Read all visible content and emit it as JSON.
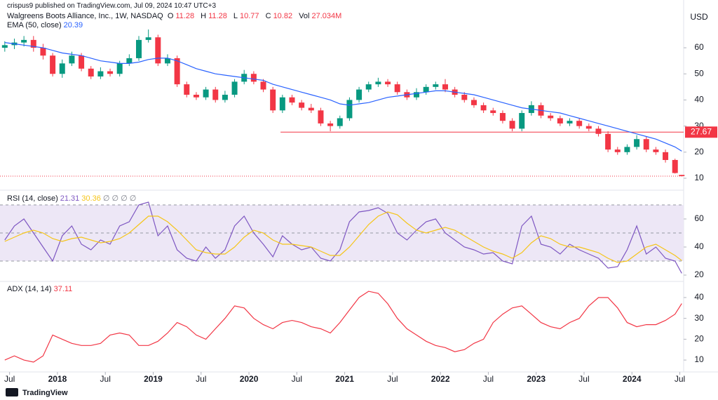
{
  "header": {
    "published": "crispus9 published on TradingView.com, Jul 09, 2024 10:47 UTC+3"
  },
  "footer": {
    "brand": "TradingView"
  },
  "chart_data": [
    {
      "type": "candlestick",
      "title": "Walgreens Boots Alliance, Inc., 1W, NASDAQ",
      "ohlc_labels": [
        "O",
        "H",
        "L",
        "C",
        "Vol"
      ],
      "volume_label": "27.034M",
      "y_axis_label": "USD",
      "up_color": "#089981",
      "down_color": "#f23645",
      "x": [
        2017.45,
        2017.55,
        2017.65,
        2017.75,
        2017.85,
        2017.95,
        2018.05,
        2018.15,
        2018.25,
        2018.35,
        2018.45,
        2018.55,
        2018.65,
        2018.75,
        2018.85,
        2018.95,
        2019.05,
        2019.15,
        2019.25,
        2019.35,
        2019.45,
        2019.55,
        2019.65,
        2019.75,
        2019.85,
        2019.95,
        2020.05,
        2020.15,
        2020.25,
        2020.35,
        2020.45,
        2020.55,
        2020.65,
        2020.75,
        2020.85,
        2020.95,
        2021.05,
        2021.15,
        2021.25,
        2021.35,
        2021.45,
        2021.55,
        2021.65,
        2021.75,
        2021.85,
        2021.95,
        2022.05,
        2022.15,
        2022.25,
        2022.35,
        2022.45,
        2022.55,
        2022.65,
        2022.75,
        2022.85,
        2022.95,
        2023.05,
        2023.15,
        2023.25,
        2023.35,
        2023.45,
        2023.55,
        2023.65,
        2023.75,
        2023.85,
        2023.95,
        2024.05,
        2024.15,
        2024.25,
        2024.35,
        2024.45,
        2024.52
      ],
      "open": [
        60,
        61,
        62,
        63,
        60,
        57,
        50,
        54,
        57,
        52,
        49,
        51,
        50,
        54,
        56,
        63,
        64,
        54,
        56,
        46,
        42,
        41,
        44,
        40,
        42,
        47,
        50,
        47,
        44,
        36,
        41,
        39,
        37,
        36,
        31,
        30,
        33,
        40,
        44,
        46,
        47,
        46,
        43,
        41,
        43,
        45,
        46,
        44,
        42,
        40,
        38,
        36,
        35,
        32,
        29,
        35,
        38,
        34,
        33,
        31,
        32,
        30,
        29,
        27,
        21,
        20,
        22,
        25,
        21,
        20,
        17,
        11.28
      ],
      "high": [
        62.5,
        63.5,
        64.5,
        64.5,
        61.5,
        58,
        55.5,
        58.5,
        58,
        53,
        52.5,
        52,
        55,
        57.5,
        64.5,
        67,
        65,
        57.5,
        57,
        47,
        43,
        45,
        45,
        43.5,
        48,
        51.5,
        51,
        48,
        45,
        42,
        42,
        40,
        38.5,
        37,
        32,
        34,
        41,
        45,
        47,
        48.5,
        48,
        47,
        44,
        44.5,
        46,
        47,
        48,
        45,
        43,
        41,
        39,
        37,
        36,
        33,
        36,
        39.5,
        39,
        35,
        34,
        33,
        33,
        31,
        30,
        28,
        22,
        23,
        26.5,
        26,
        22,
        21,
        17.5,
        11.28
      ],
      "low": [
        58.5,
        59.5,
        60.5,
        58.5,
        55.5,
        49,
        48.5,
        53,
        51,
        48,
        48,
        49,
        49,
        53,
        55,
        62,
        53,
        53,
        45,
        41,
        40,
        40,
        39,
        39,
        41,
        46,
        46,
        43,
        35,
        35,
        38,
        36,
        35,
        30,
        28,
        29,
        32,
        39,
        43,
        45,
        45,
        42,
        40,
        40,
        42,
        44,
        43,
        41,
        39,
        37,
        35,
        34,
        31,
        28,
        28,
        34,
        33,
        32,
        30,
        30,
        29,
        28,
        26,
        20,
        19,
        19,
        21,
        20,
        19,
        16,
        11.8,
        10.77
      ],
      "close": [
        61,
        62,
        63,
        60,
        57,
        50,
        54,
        57,
        52,
        49,
        51,
        50,
        54,
        56,
        63,
        64,
        54,
        56,
        46,
        42,
        41,
        44,
        40,
        42,
        47,
        50,
        47,
        44,
        36,
        41,
        39,
        37,
        36,
        31,
        30,
        33,
        40,
        44,
        46,
        47,
        46,
        43,
        41,
        43,
        45,
        46,
        44,
        42,
        40,
        38,
        36,
        35,
        32,
        29,
        35,
        38,
        34,
        33,
        31,
        32,
        30,
        29,
        27,
        21,
        20,
        22,
        25,
        21,
        20,
        17,
        12,
        10.82
      ],
      "series": [
        {
          "name": "EMA (50, close)",
          "color": "#2962ff",
          "values": [
            62,
            61.5,
            61,
            60.5,
            60,
            59,
            58,
            57.5,
            57,
            56,
            55,
            54.5,
            54,
            54,
            54.5,
            55.5,
            56,
            56,
            55,
            53.5,
            52,
            51,
            50,
            49.5,
            49,
            48.5,
            48,
            47.5,
            46,
            45,
            44,
            43,
            42,
            41,
            40,
            38.5,
            38,
            38.5,
            39,
            40,
            41,
            41.5,
            42,
            42.5,
            43,
            43.5,
            43.5,
            43,
            42.5,
            42,
            41,
            40,
            39,
            38,
            37,
            36.5,
            36,
            35.5,
            35,
            34,
            33,
            32,
            31,
            30,
            29,
            28,
            27,
            26,
            25,
            23.5,
            22,
            20.39
          ]
        }
      ],
      "hline": {
        "value": 27.67,
        "x_start": 2020.33,
        "color": "#f23645"
      },
      "xlim": [
        2017.4,
        2024.54
      ],
      "ylim": [
        5.7,
        78.3
      ],
      "yticks": [
        10,
        20,
        30,
        40,
        50,
        60
      ],
      "xticks": [
        {
          "value": 2017.5,
          "label": "Jul"
        },
        2018,
        {
          "value": 2018.5,
          "label": "Jul"
        },
        2019,
        {
          "value": 2019.5,
          "label": "Jul"
        },
        2020,
        {
          "value": 2020.5,
          "label": "Jul"
        },
        2021,
        {
          "value": 2021.5,
          "label": "Jul"
        },
        2022,
        {
          "value": 2022.5,
          "label": "Jul"
        },
        2023,
        {
          "value": 2023.5,
          "label": "Jul"
        },
        2024,
        {
          "value": 2024.5,
          "label": "Jul"
        }
      ]
    },
    {
      "type": "line",
      "title": "RSI (14, close)",
      "extra": "∅ ∅ ∅ ∅",
      "series": [
        {
          "color": "#7e57c2",
          "values": [
            45,
            55,
            60,
            50,
            40,
            30,
            48,
            55,
            42,
            38,
            45,
            42,
            55,
            58,
            70,
            72,
            48,
            55,
            38,
            32,
            30,
            40,
            32,
            38,
            55,
            62,
            50,
            42,
            33,
            48,
            42,
            38,
            40,
            32,
            30,
            38,
            58,
            65,
            66,
            68,
            64,
            50,
            45,
            52,
            58,
            60,
            50,
            45,
            40,
            38,
            35,
            36,
            30,
            28,
            55,
            62,
            42,
            40,
            35,
            42,
            38,
            35,
            32,
            25,
            26,
            38,
            55,
            35,
            40,
            32,
            30,
            21.31
          ]
        },
        {
          "color": "#f5c518",
          "values": [
            44,
            47,
            50,
            52,
            50,
            46,
            44,
            46,
            47,
            45,
            43,
            44,
            46,
            50,
            56,
            62,
            62,
            58,
            52,
            45,
            38,
            36,
            35,
            35,
            40,
            47,
            52,
            50,
            45,
            42,
            42,
            41,
            40,
            37,
            34,
            34,
            40,
            48,
            56,
            62,
            65,
            63,
            57,
            52,
            50,
            52,
            54,
            52,
            48,
            44,
            40,
            37,
            35,
            32,
            36,
            43,
            48,
            46,
            42,
            40,
            40,
            38,
            36,
            32,
            29,
            30,
            35,
            40,
            42,
            38,
            34,
            30.36
          ]
        }
      ],
      "bands": [
        30,
        50,
        70
      ],
      "band_fill": "#ede7f6",
      "ylim": [
        16,
        80
      ],
      "yticks": [
        20,
        40,
        60
      ]
    },
    {
      "type": "line",
      "title": "ADX (14, 14)",
      "series": [
        {
          "color": "#f23645",
          "values": [
            10,
            12,
            10,
            9,
            12,
            22,
            20,
            18,
            17,
            17,
            18,
            22,
            23,
            22,
            17,
            17,
            19,
            23,
            28,
            26,
            22,
            20,
            25,
            30,
            36,
            35,
            30,
            27,
            25,
            28,
            29,
            28,
            26,
            25,
            23,
            28,
            34,
            40,
            43,
            42,
            37,
            30,
            25,
            22,
            19,
            17,
            16,
            14,
            15,
            18,
            20,
            28,
            32,
            35,
            36,
            32,
            28,
            26,
            25,
            28,
            30,
            36,
            40,
            40,
            35,
            28,
            26,
            27,
            27,
            29,
            32,
            37.11
          ]
        }
      ],
      "ylim": [
        4.3,
        47.4
      ],
      "yticks": [
        10,
        20,
        30,
        40
      ]
    }
  ]
}
